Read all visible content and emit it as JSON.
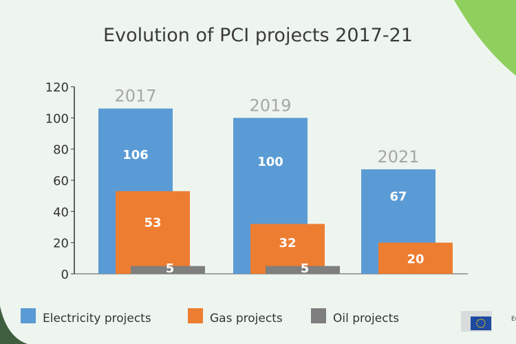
{
  "chart_data": {
    "type": "bar",
    "title": "Evolution of PCI projects 2017-21",
    "categories": [
      "2017",
      "2019",
      "2021"
    ],
    "series": [
      {
        "name": "Electricity projects",
        "values": [
          106,
          100,
          67
        ],
        "color": "#5b9bd5"
      },
      {
        "name": "Gas projects",
        "values": [
          53,
          32,
          20
        ],
        "color": "#ed7d31"
      },
      {
        "name": "Oil projects",
        "values": [
          5,
          5,
          null
        ],
        "color": "#7f7f7f"
      }
    ],
    "yticks": [
      0,
      20,
      40,
      60,
      80,
      100,
      120
    ],
    "ylim": [
      0,
      120
    ],
    "grid": false,
    "legend": "bottom",
    "xlabel": "",
    "ylabel": ""
  },
  "logo": {
    "text": "European Commission"
  }
}
